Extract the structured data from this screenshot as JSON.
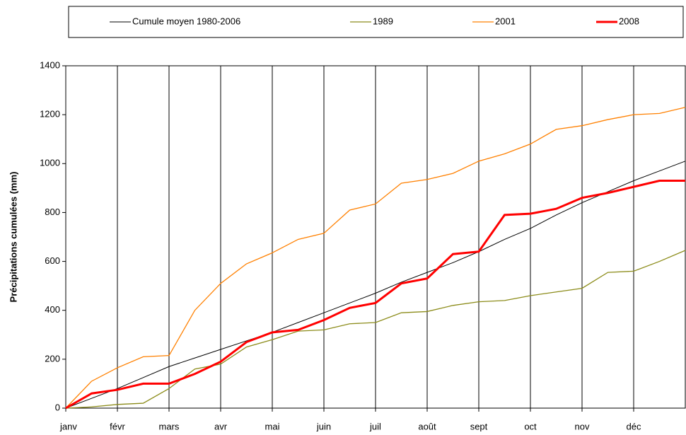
{
  "chart_data": {
    "type": "line",
    "ylabel": "Précipitations cumulées (mm)",
    "categories": [
      "janv",
      null,
      "févr",
      null,
      "mars",
      null,
      "avr",
      null,
      "mai",
      null,
      "juin",
      null,
      "juil",
      null,
      "août",
      null,
      "sept",
      null,
      "oct",
      null,
      "nov",
      null,
      "déc",
      null,
      null
    ],
    "series": [
      {
        "name": "Cumule moyen 1980-2006",
        "color": "#000000",
        "width": 1,
        "values": [
          0,
          40,
          80,
          125,
          170,
          205,
          240,
          275,
          310,
          350,
          390,
          430,
          470,
          515,
          555,
          595,
          640,
          690,
          735,
          790,
          840,
          885,
          930,
          970,
          1010
        ]
      },
      {
        "name": "1989",
        "color": "#8c8c1a",
        "width": 1.3,
        "values": [
          0,
          5,
          15,
          20,
          80,
          160,
          180,
          250,
          280,
          315,
          320,
          345,
          350,
          390,
          395,
          420,
          435,
          440,
          460,
          475,
          490,
          555,
          560,
          600,
          645
        ]
      },
      {
        "name": "2001",
        "color": "#ff8000",
        "width": 1.3,
        "values": [
          0,
          110,
          165,
          210,
          215,
          400,
          510,
          590,
          635,
          690,
          715,
          810,
          835,
          920,
          935,
          960,
          1010,
          1040,
          1080,
          1140,
          1155,
          1180,
          1200,
          1205,
          1230
        ]
      },
      {
        "name": "2008",
        "color": "#ff0000",
        "width": 3,
        "values": [
          0,
          60,
          75,
          100,
          100,
          140,
          190,
          270,
          310,
          320,
          360,
          410,
          430,
          510,
          530,
          630,
          640,
          790,
          795,
          815,
          860,
          880,
          905,
          930,
          930
        ]
      }
    ],
    "ylim": [
      0,
      1400
    ],
    "yticks": [
      0,
      200,
      400,
      600,
      800,
      1000,
      1200,
      1400
    ],
    "grid": "x",
    "legend": "top"
  }
}
